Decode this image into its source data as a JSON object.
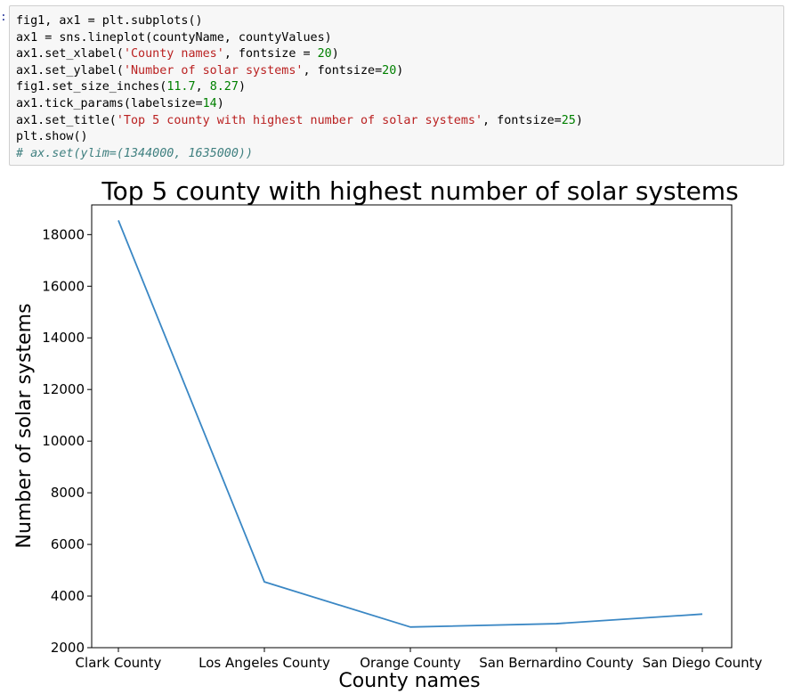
{
  "cell": {
    "prompt": ":",
    "lines": [
      [
        {
          "t": "fig1, ax1 = plt.subplots()"
        }
      ],
      [
        {
          "t": "ax1 = sns.lineplot(countyName, countyValues)"
        }
      ],
      [
        {
          "t": "ax1.set_xlabel("
        },
        {
          "t": "'County names'",
          "k": "str"
        },
        {
          "t": ", fontsize = "
        },
        {
          "t": "20",
          "k": "num"
        },
        {
          "t": ")"
        }
      ],
      [
        {
          "t": "ax1.set_ylabel("
        },
        {
          "t": "'Number of solar systems'",
          "k": "str"
        },
        {
          "t": ", fontsize="
        },
        {
          "t": "20",
          "k": "num"
        },
        {
          "t": ")"
        }
      ],
      [
        {
          "t": "fig1.set_size_inches("
        },
        {
          "t": "11.7",
          "k": "num"
        },
        {
          "t": ", "
        },
        {
          "t": "8.27",
          "k": "num"
        },
        {
          "t": ")"
        }
      ],
      [
        {
          "t": "ax1.tick_params(labelsize="
        },
        {
          "t": "14",
          "k": "num"
        },
        {
          "t": ")"
        }
      ],
      [
        {
          "t": "ax1.set_title("
        },
        {
          "t": "'Top 5 county with highest number of solar systems'",
          "k": "str"
        },
        {
          "t": ", fontsize="
        },
        {
          "t": "25",
          "k": "num"
        },
        {
          "t": ")"
        }
      ],
      [
        {
          "t": "plt.show()"
        }
      ],
      [
        {
          "t": "# ax.set(ylim=(1344000, 1635000))",
          "k": "comment"
        }
      ]
    ]
  },
  "chart_data": {
    "type": "line",
    "title": "Top 5 county with highest number of solar systems",
    "xlabel": "County names",
    "ylabel": "Number of solar systems",
    "categories": [
      "Clark County",
      "Los Angeles County",
      "Orange County",
      "San Bernardino County",
      "San Diego County"
    ],
    "series": [
      {
        "values": [
          18550,
          4550,
          2800,
          2930,
          3300
        ]
      }
    ],
    "ylim": [
      2000,
      19150
    ],
    "yticks": [
      2000,
      4000,
      6000,
      8000,
      10000,
      12000,
      14000,
      16000,
      18000
    ],
    "grid": false,
    "line_color": "#3a87c4"
  }
}
